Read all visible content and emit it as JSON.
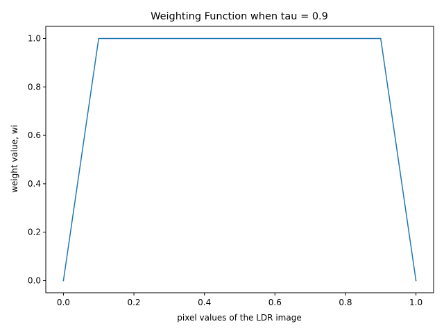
{
  "chart_data": {
    "type": "line",
    "title": "Weighting Function when tau = 0.9",
    "xlabel": "pixel values of the LDR image",
    "ylabel": "weight value, wi",
    "xlim": [
      -0.05,
      1.05
    ],
    "ylim": [
      -0.05,
      1.05
    ],
    "xticks": [
      0.0,
      0.2,
      0.4,
      0.6,
      0.8,
      1.0
    ],
    "xtick_labels": [
      "0.0",
      "0.2",
      "0.4",
      "0.6",
      "0.8",
      "1.0"
    ],
    "yticks": [
      0.0,
      0.2,
      0.4,
      0.6,
      0.8,
      1.0
    ],
    "ytick_labels": [
      "0.0",
      "0.2",
      "0.4",
      "0.6",
      "0.8",
      "1.0"
    ],
    "grid": false,
    "legend": "none",
    "series": [
      {
        "x": [
          0.0,
          0.1,
          0.9,
          1.0
        ],
        "y": [
          0.0,
          1.0,
          1.0,
          0.0
        ],
        "color": "#1f77b4"
      }
    ]
  }
}
